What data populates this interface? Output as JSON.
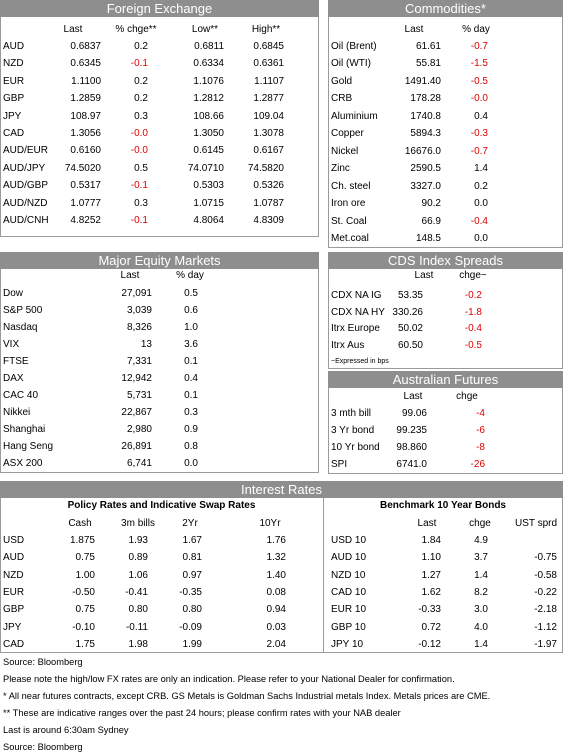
{
  "fx": {
    "title": "Foreign Exchange",
    "columns": [
      "Last",
      "% chge**",
      "Low**",
      "High**"
    ],
    "rows": [
      [
        "AUD",
        "0.6837",
        "0.2",
        "0.6811",
        "0.6845"
      ],
      [
        "NZD",
        "0.6345",
        "-0.1",
        "0.6334",
        "0.6361"
      ],
      [
        "EUR",
        "1.1100",
        "0.2",
        "1.1076",
        "1.1107"
      ],
      [
        "GBP",
        "1.2859",
        "0.2",
        "1.2812",
        "1.2877"
      ],
      [
        "JPY",
        "108.97",
        "0.3",
        "108.66",
        "109.04"
      ],
      [
        "CAD",
        "1.3056",
        "-0.0",
        "1.3050",
        "1.3078"
      ],
      [
        "AUD/EUR",
        "0.6160",
        "-0.0",
        "0.6145",
        "0.6167"
      ],
      [
        "AUD/JPY",
        "74.5020",
        "0.5",
        "74.0710",
        "74.5820"
      ],
      [
        "AUD/GBP",
        "0.5317",
        "-0.1",
        "0.5303",
        "0.5326"
      ],
      [
        "AUD/NZD",
        "1.0777",
        "0.3",
        "1.0715",
        "1.0787"
      ],
      [
        "AUD/CNH",
        "4.8252",
        "-0.1",
        "4.8064",
        "4.8309"
      ]
    ]
  },
  "commodities": {
    "title": "Commodities*",
    "columns": [
      "Last",
      "% day"
    ],
    "rows": [
      [
        "Oil (Brent)",
        "61.61",
        "-0.7"
      ],
      [
        "Oil (WTI)",
        "55.81",
        "-1.5"
      ],
      [
        "Gold",
        "1491.40",
        "-0.5"
      ],
      [
        "CRB",
        "178.28",
        "-0.0"
      ],
      [
        "Aluminium",
        "1740.8",
        "0.4"
      ],
      [
        "Copper",
        "5894.3",
        "-0.3"
      ],
      [
        "Nickel",
        "16676.0",
        "-0.7"
      ],
      [
        "Zinc",
        "2590.5",
        "1.4"
      ],
      [
        "Ch. steel",
        "3327.0",
        "0.2"
      ],
      [
        "Iron ore",
        "90.2",
        "0.0"
      ],
      [
        "St. Coal",
        "66.9",
        "-0.4"
      ],
      [
        "Met.coal",
        "148.5",
        "0.0"
      ]
    ]
  },
  "equities": {
    "title": "Major Equity Markets",
    "columns": [
      "Last",
      "% day"
    ],
    "rows": [
      [
        "Dow",
        "27,091",
        "0.5"
      ],
      [
        "S&P 500",
        "3,039",
        "0.6"
      ],
      [
        "Nasdaq",
        "8,326",
        "1.0"
      ],
      [
        "VIX",
        "13",
        "3.6"
      ],
      [
        "FTSE",
        "7,331",
        "0.1"
      ],
      [
        "DAX",
        "12,942",
        "0.4"
      ],
      [
        "CAC 40",
        "5,731",
        "0.1"
      ],
      [
        "Nikkei",
        "22,867",
        "0.3"
      ],
      [
        "Shanghai",
        "2,980",
        "0.9"
      ],
      [
        "Hang Seng",
        "26,891",
        "0.8"
      ],
      [
        "ASX 200",
        "6,741",
        "0.0"
      ]
    ]
  },
  "cds": {
    "title": "CDS Index Spreads",
    "columns": [
      "Last",
      "chge~"
    ],
    "rows": [
      [
        "CDX NA IG",
        "53.35",
        "-0.2"
      ],
      [
        "CDX NA HY",
        "330.26",
        "-1.8"
      ],
      [
        "Itrx Europe",
        "50.02",
        "-0.4"
      ],
      [
        "Itrx Aus",
        "60.50",
        "-0.5"
      ]
    ],
    "note": "~Expressed in bps"
  },
  "futures": {
    "title": "Australian Futures",
    "columns": [
      "Last",
      "chge"
    ],
    "rows": [
      [
        "3 mth bill",
        "99.06",
        "-4"
      ],
      [
        "3 Yr bond",
        "99.235",
        "-6"
      ],
      [
        "10 Yr bond",
        "98.860",
        "-8"
      ],
      [
        "SPI",
        "6741.0",
        "-26"
      ]
    ]
  },
  "interest_rates": {
    "title": "Interest Rates",
    "policy": {
      "title": "Policy Rates and Indicative Swap Rates",
      "columns": [
        "Cash",
        "3m bills",
        "2Yr",
        "10Yr"
      ],
      "rows": [
        [
          "USD",
          "1.875",
          "1.93",
          "1.67",
          "1.76"
        ],
        [
          "AUD",
          "0.75",
          "0.89",
          "0.81",
          "1.32"
        ],
        [
          "NZD",
          "1.00",
          "1.06",
          "0.97",
          "1.40"
        ],
        [
          "EUR",
          "-0.50",
          "-0.41",
          "-0.35",
          "0.08"
        ],
        [
          "GBP",
          "0.75",
          "0.80",
          "0.80",
          "0.94"
        ],
        [
          "JPY",
          "-0.10",
          "-0.11",
          "-0.09",
          "0.03"
        ],
        [
          "CAD",
          "1.75",
          "1.98",
          "1.99",
          "2.04"
        ]
      ]
    },
    "bonds": {
      "title": "Benchmark 10 Year Bonds",
      "columns": [
        "Last",
        "chge",
        "UST sprd"
      ],
      "rows": [
        [
          "USD 10",
          "1.84",
          "4.9",
          null
        ],
        [
          "AUD 10",
          "1.10",
          "3.7",
          "-0.75"
        ],
        [
          "NZD 10",
          "1.27",
          "1.4",
          "-0.58"
        ],
        [
          "CAD 10",
          "1.62",
          "8.2",
          "-0.22"
        ],
        [
          "EUR 10",
          "-0.33",
          "3.0",
          "-2.18"
        ],
        [
          "GBP 10",
          "0.72",
          "4.0",
          "-1.12"
        ],
        [
          "JPY 10",
          "-0.12",
          "1.4",
          "-1.97"
        ]
      ]
    }
  },
  "footer": [
    "Source: Bloomberg",
    "Please note the high/low FX rates are only an indication. Please refer to your National Dealer for confirmation.",
    "* All near futures contracts, except CRB. GS Metals is Goldman Sachs Industrial metals Index. Metals prices are CME.",
    "** These are indicative ranges over the past 24 hours; please confirm rates with your NAB dealer",
    "Last is around 6:30am Sydney",
    "Source: Bloomberg"
  ]
}
